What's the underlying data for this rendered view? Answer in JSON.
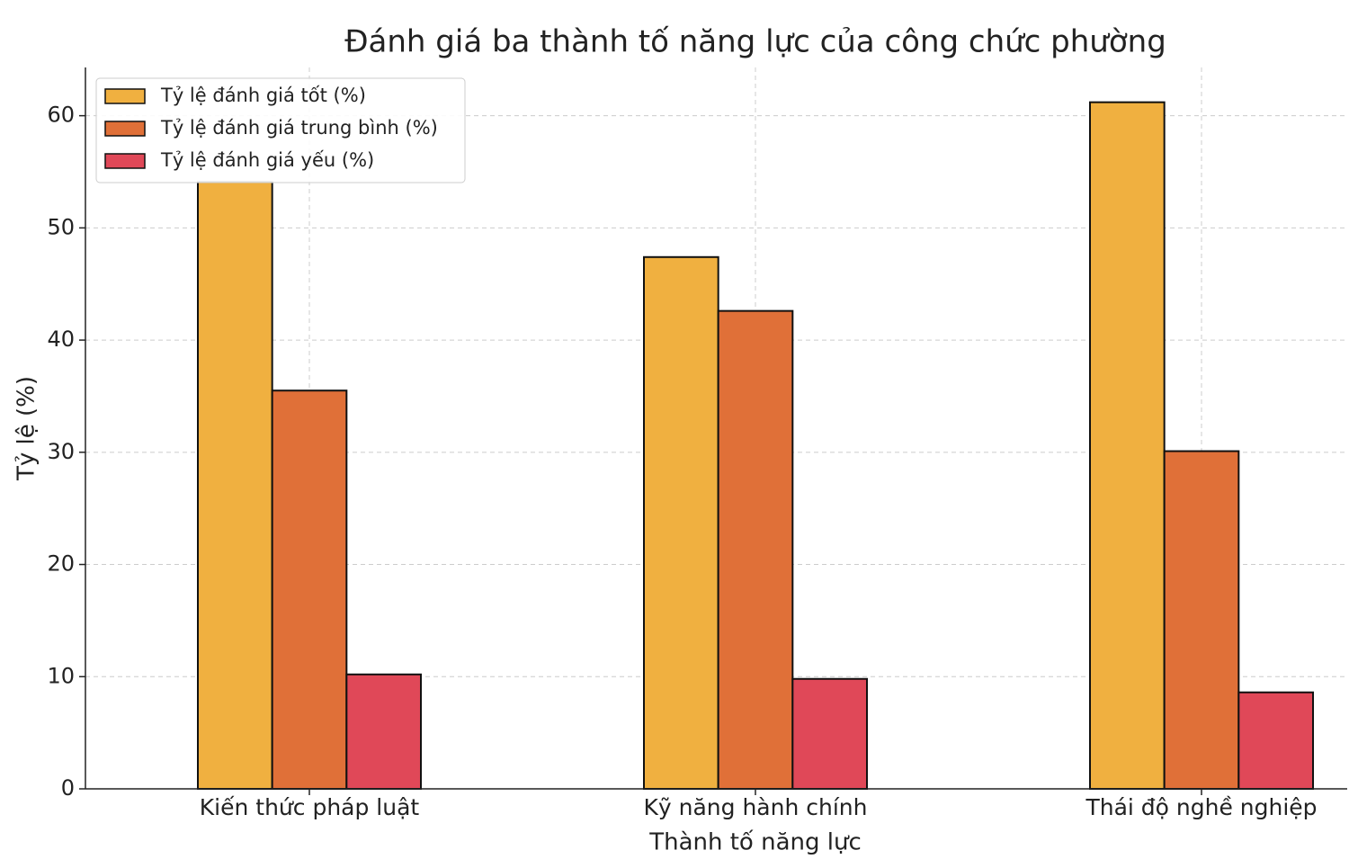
{
  "chart_data": {
    "type": "bar",
    "title": "Đánh giá ba thành tố năng lực của công chức phường",
    "x_label": "Thành tố năng lực",
    "y_label": "Tỷ lệ (%)",
    "categories": [
      "Kiến thức pháp luật",
      "Kỹ năng hành chính",
      "Thái độ nghề nghiệp"
    ],
    "series": [
      {
        "name": "Tỷ lệ đánh giá tốt (%)",
        "color": "#f0b040",
        "values": [
          54.1,
          47.4,
          61.2
        ]
      },
      {
        "name": "Tỷ lệ đánh giá trung bình (%)",
        "color": "#e07038",
        "values": [
          35.5,
          42.6,
          30.1
        ]
      },
      {
        "name": "Tỷ lệ đánh giá yếu (%)",
        "color": "#e04858",
        "values": [
          10.2,
          9.8,
          8.6
        ]
      }
    ],
    "ylim": [
      0,
      64.3
    ],
    "yticks": [
      0,
      10,
      20,
      30,
      40,
      50,
      60
    ],
    "grid": true,
    "legend": "upper-left"
  }
}
